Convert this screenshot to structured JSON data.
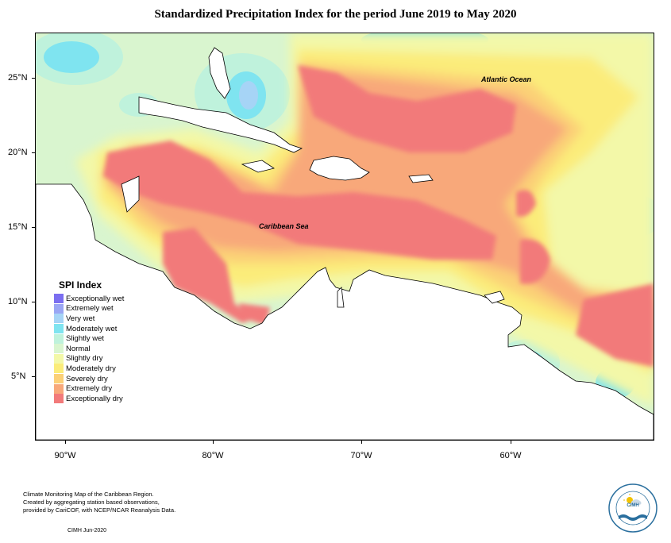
{
  "title": "Standardized Precipitation Index for the period June 2019 to May 2020",
  "map": {
    "lat_labels": [
      "25°N",
      "20°N",
      "15°N",
      "10°N",
      "5°N"
    ],
    "lon_labels": [
      "90°W",
      "80°W",
      "70°W",
      "60°W"
    ],
    "ocean_labels": [
      "Atlantic Ocean",
      "Caribbean Sea"
    ],
    "lat_range": [
      1,
      28
    ],
    "lon_range": [
      -92.2,
      -50.6
    ]
  },
  "legend": {
    "title": "SPI Index",
    "items": [
      {
        "label": "Exceptionally wet",
        "color": "#7b6ef0"
      },
      {
        "label": "Extremely wet",
        "color": "#9aa6f4"
      },
      {
        "label": "Very wet",
        "color": "#a6d4f6"
      },
      {
        "label": "Moderately wet",
        "color": "#7fe4f0"
      },
      {
        "label": "Slightly wet",
        "color": "#bff2dc"
      },
      {
        "label": "Normal",
        "color": "#d9f5cf"
      },
      {
        "label": "Slightly dry",
        "color": "#f3f8a8"
      },
      {
        "label": "Moderately dry",
        "color": "#fbec7a"
      },
      {
        "label": "Severely dry",
        "color": "#fbd077"
      },
      {
        "label": "Extremely dry",
        "color": "#f8a87a"
      },
      {
        "label": "Exceptionally dry",
        "color": "#f27a7a"
      }
    ]
  },
  "footer": {
    "line1": "Climate Monitoring Map of the Caribbean Region.",
    "line2": "Created by aggregating station based observations,",
    "line3": "provided by CariCOF, with NCEP/NCAR Reanalysis Data.",
    "date": "CIMH Jun-2020"
  },
  "logo": {
    "name": "CIMH",
    "top_text": "Caribbean Institute for",
    "bottom_text": "Meteorology and Hydrology"
  }
}
